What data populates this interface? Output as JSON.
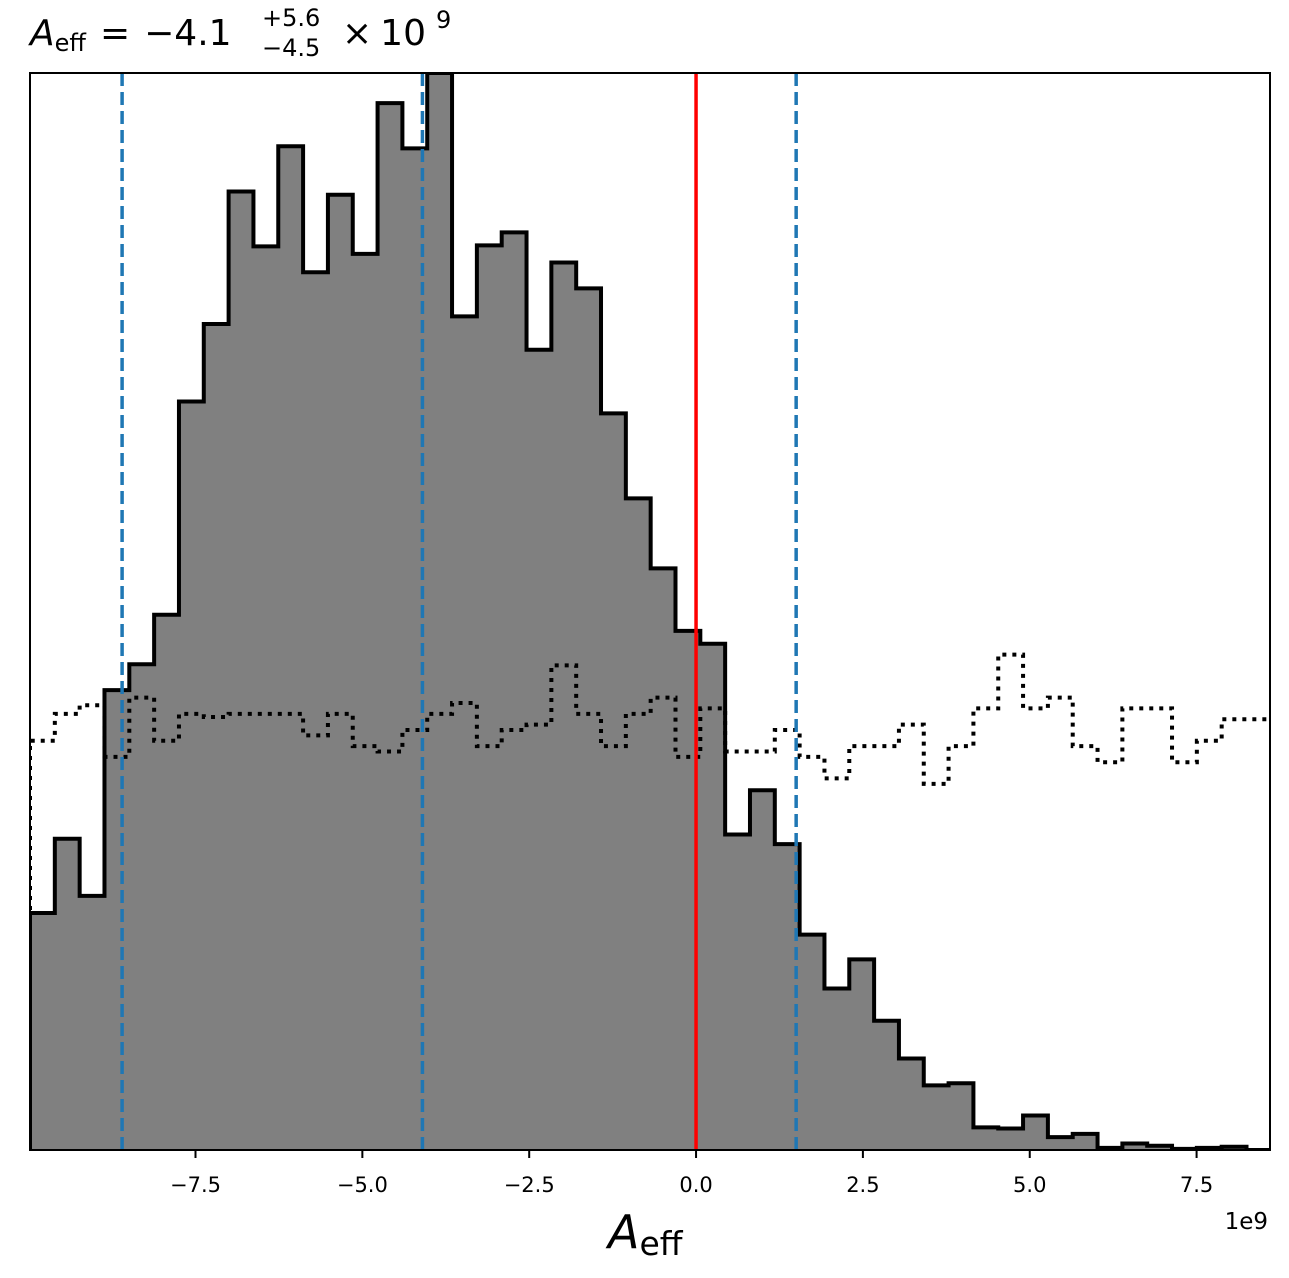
{
  "chart_data": {
    "type": "histogram",
    "title": {
      "symbol": "A",
      "subscript": "eff",
      "equals": "=",
      "median": "−4.1",
      "err_plus": "+5.6",
      "err_minus": "−4.5",
      "times": "×",
      "base": "10",
      "exponent": "9"
    },
    "xlabel": {
      "symbol": "A",
      "subscript": "eff"
    },
    "offset_label": "1e9",
    "x_unit_scale": 1000000000.0,
    "xlim": [
      -9.98,
      8.6
    ],
    "ylim": [
      0,
      1.0
    ],
    "xticks": [
      -7.5,
      -5.0,
      -2.5,
      0.0,
      2.5,
      5.0,
      7.5
    ],
    "xtick_labels": [
      "−7.5",
      "−5.0",
      "−2.5",
      "0.0",
      "2.5",
      "5.0",
      "7.5"
    ],
    "yticks_shown": false,
    "posterior": {
      "style": "filled step",
      "fill_color": "#808080",
      "edge_color": "#000000",
      "bin_edges": [
        -9.98,
        -9.608,
        -9.236,
        -8.864,
        -8.492,
        -8.12,
        -7.748,
        -7.376,
        -7.004,
        -6.632,
        -6.26,
        -5.888,
        -5.516,
        -5.144,
        -4.772,
        -4.4,
        -4.028,
        -3.656,
        -3.284,
        -2.912,
        -2.54,
        -2.168,
        -1.796,
        -1.424,
        -1.052,
        -0.68,
        -0.308,
        0.064,
        0.436,
        0.808,
        1.18,
        1.552,
        1.924,
        2.296,
        2.668,
        3.04,
        3.412,
        3.784,
        4.156,
        4.528,
        4.9,
        5.272,
        5.644,
        6.016,
        6.388,
        6.76,
        7.132,
        7.504,
        7.876,
        8.248,
        8.6
      ],
      "counts": [
        0.22,
        0.289,
        0.236,
        0.427,
        0.451,
        0.497,
        0.695,
        0.767,
        0.89,
        0.839,
        0.932,
        0.815,
        0.887,
        0.832,
        0.972,
        0.93,
        1.0,
        0.774,
        0.84,
        0.852,
        0.743,
        0.824,
        0.8,
        0.684,
        0.605,
        0.54,
        0.482,
        0.47,
        0.293,
        0.334,
        0.284,
        0.2,
        0.15,
        0.177,
        0.12,
        0.085,
        0.06,
        0.062,
        0.021,
        0.02,
        0.032,
        0.012,
        0.015,
        0.002,
        0.006,
        0.004,
        0.001,
        0.002,
        0.003,
        0.0
      ]
    },
    "prior": {
      "style": "dotted step",
      "color": "#000000",
      "bin_edges": [
        -9.98,
        -9.608,
        -9.236,
        -8.864,
        -8.492,
        -8.12,
        -7.748,
        -7.376,
        -7.004,
        -6.632,
        -6.26,
        -5.888,
        -5.516,
        -5.144,
        -4.772,
        -4.4,
        -4.028,
        -3.656,
        -3.284,
        -2.912,
        -2.54,
        -2.168,
        -1.796,
        -1.424,
        -1.052,
        -0.68,
        -0.308,
        0.064,
        0.436,
        0.808,
        1.18,
        1.552,
        1.924,
        2.296,
        2.668,
        3.04,
        3.412,
        3.784,
        4.156,
        4.528,
        4.9,
        5.272,
        5.644,
        6.016,
        6.388,
        6.76,
        7.132,
        7.504,
        7.876,
        8.248,
        8.6
      ],
      "counts": [
        0.38,
        0.405,
        0.413,
        0.365,
        0.42,
        0.38,
        0.405,
        0.402,
        0.405,
        0.405,
        0.405,
        0.385,
        0.405,
        0.375,
        0.37,
        0.39,
        0.405,
        0.415,
        0.375,
        0.39,
        0.395,
        0.45,
        0.405,
        0.375,
        0.405,
        0.42,
        0.365,
        0.41,
        0.37,
        0.37,
        0.39,
        0.365,
        0.345,
        0.375,
        0.375,
        0.395,
        0.34,
        0.375,
        0.41,
        0.46,
        0.41,
        0.42,
        0.375,
        0.36,
        0.41,
        0.41,
        0.36,
        0.38,
        0.4,
        0.4
      ]
    },
    "vertical_lines": [
      {
        "name": "median",
        "x": -4.1,
        "color": "#1f77b4",
        "style": "dashed"
      },
      {
        "name": "lower-bound",
        "x": -8.6,
        "color": "#1f77b4",
        "style": "dashed"
      },
      {
        "name": "upper-bound",
        "x": 1.5,
        "color": "#1f77b4",
        "style": "dashed"
      },
      {
        "name": "true-value",
        "x": 0.0,
        "color": "#ff0000",
        "style": "solid"
      }
    ]
  }
}
